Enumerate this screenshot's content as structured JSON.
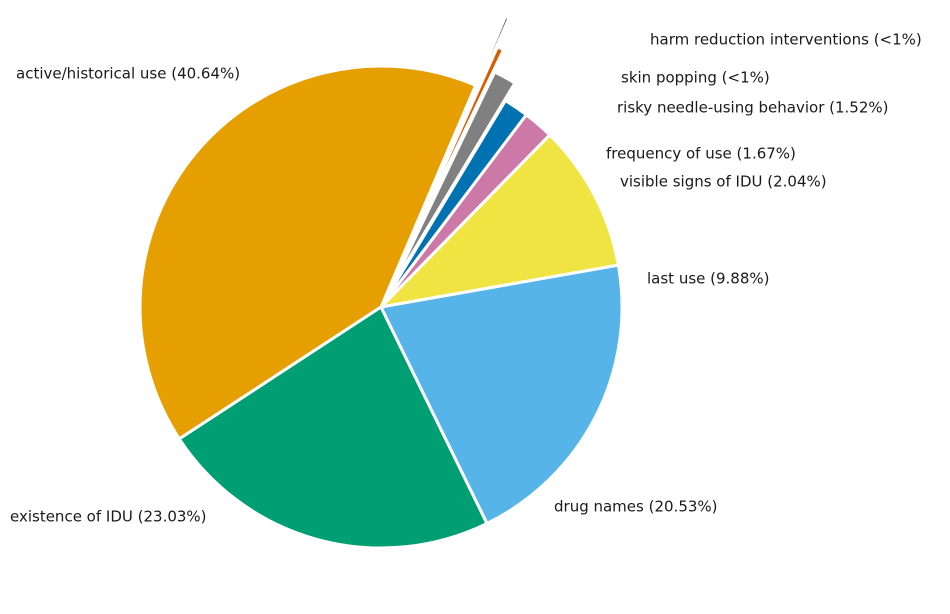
{
  "chart_data": {
    "type": "pie",
    "title": "",
    "slices": [
      {
        "label": "last use (9.88%)",
        "value": 9.88,
        "color": "#F0E442"
      },
      {
        "label": "visible signs of IDU (2.04%)",
        "value": 2.04,
        "color": "#CC79A7"
      },
      {
        "label": "frequency of use (1.67%)",
        "value": 1.67,
        "color": "#0072B2"
      },
      {
        "label": "risky needle-using behavior (1.52%)",
        "value": 1.52,
        "color": "#808080"
      },
      {
        "label": "skin popping (<1%)",
        "value": 0.45,
        "color": "#D55E00"
      },
      {
        "label": "harm reduction interventions (<1%)",
        "value": 0.24,
        "color": "#000000"
      },
      {
        "label": "active/historical use (40.64%)",
        "value": 40.64,
        "color": "#E69F00"
      },
      {
        "label": "existence of IDU (23.03%)",
        "value": 23.03,
        "color": "#009E73"
      },
      {
        "label": "drug names (20.53%)",
        "value": 20.53,
        "color": "#56B4E9"
      }
    ]
  }
}
